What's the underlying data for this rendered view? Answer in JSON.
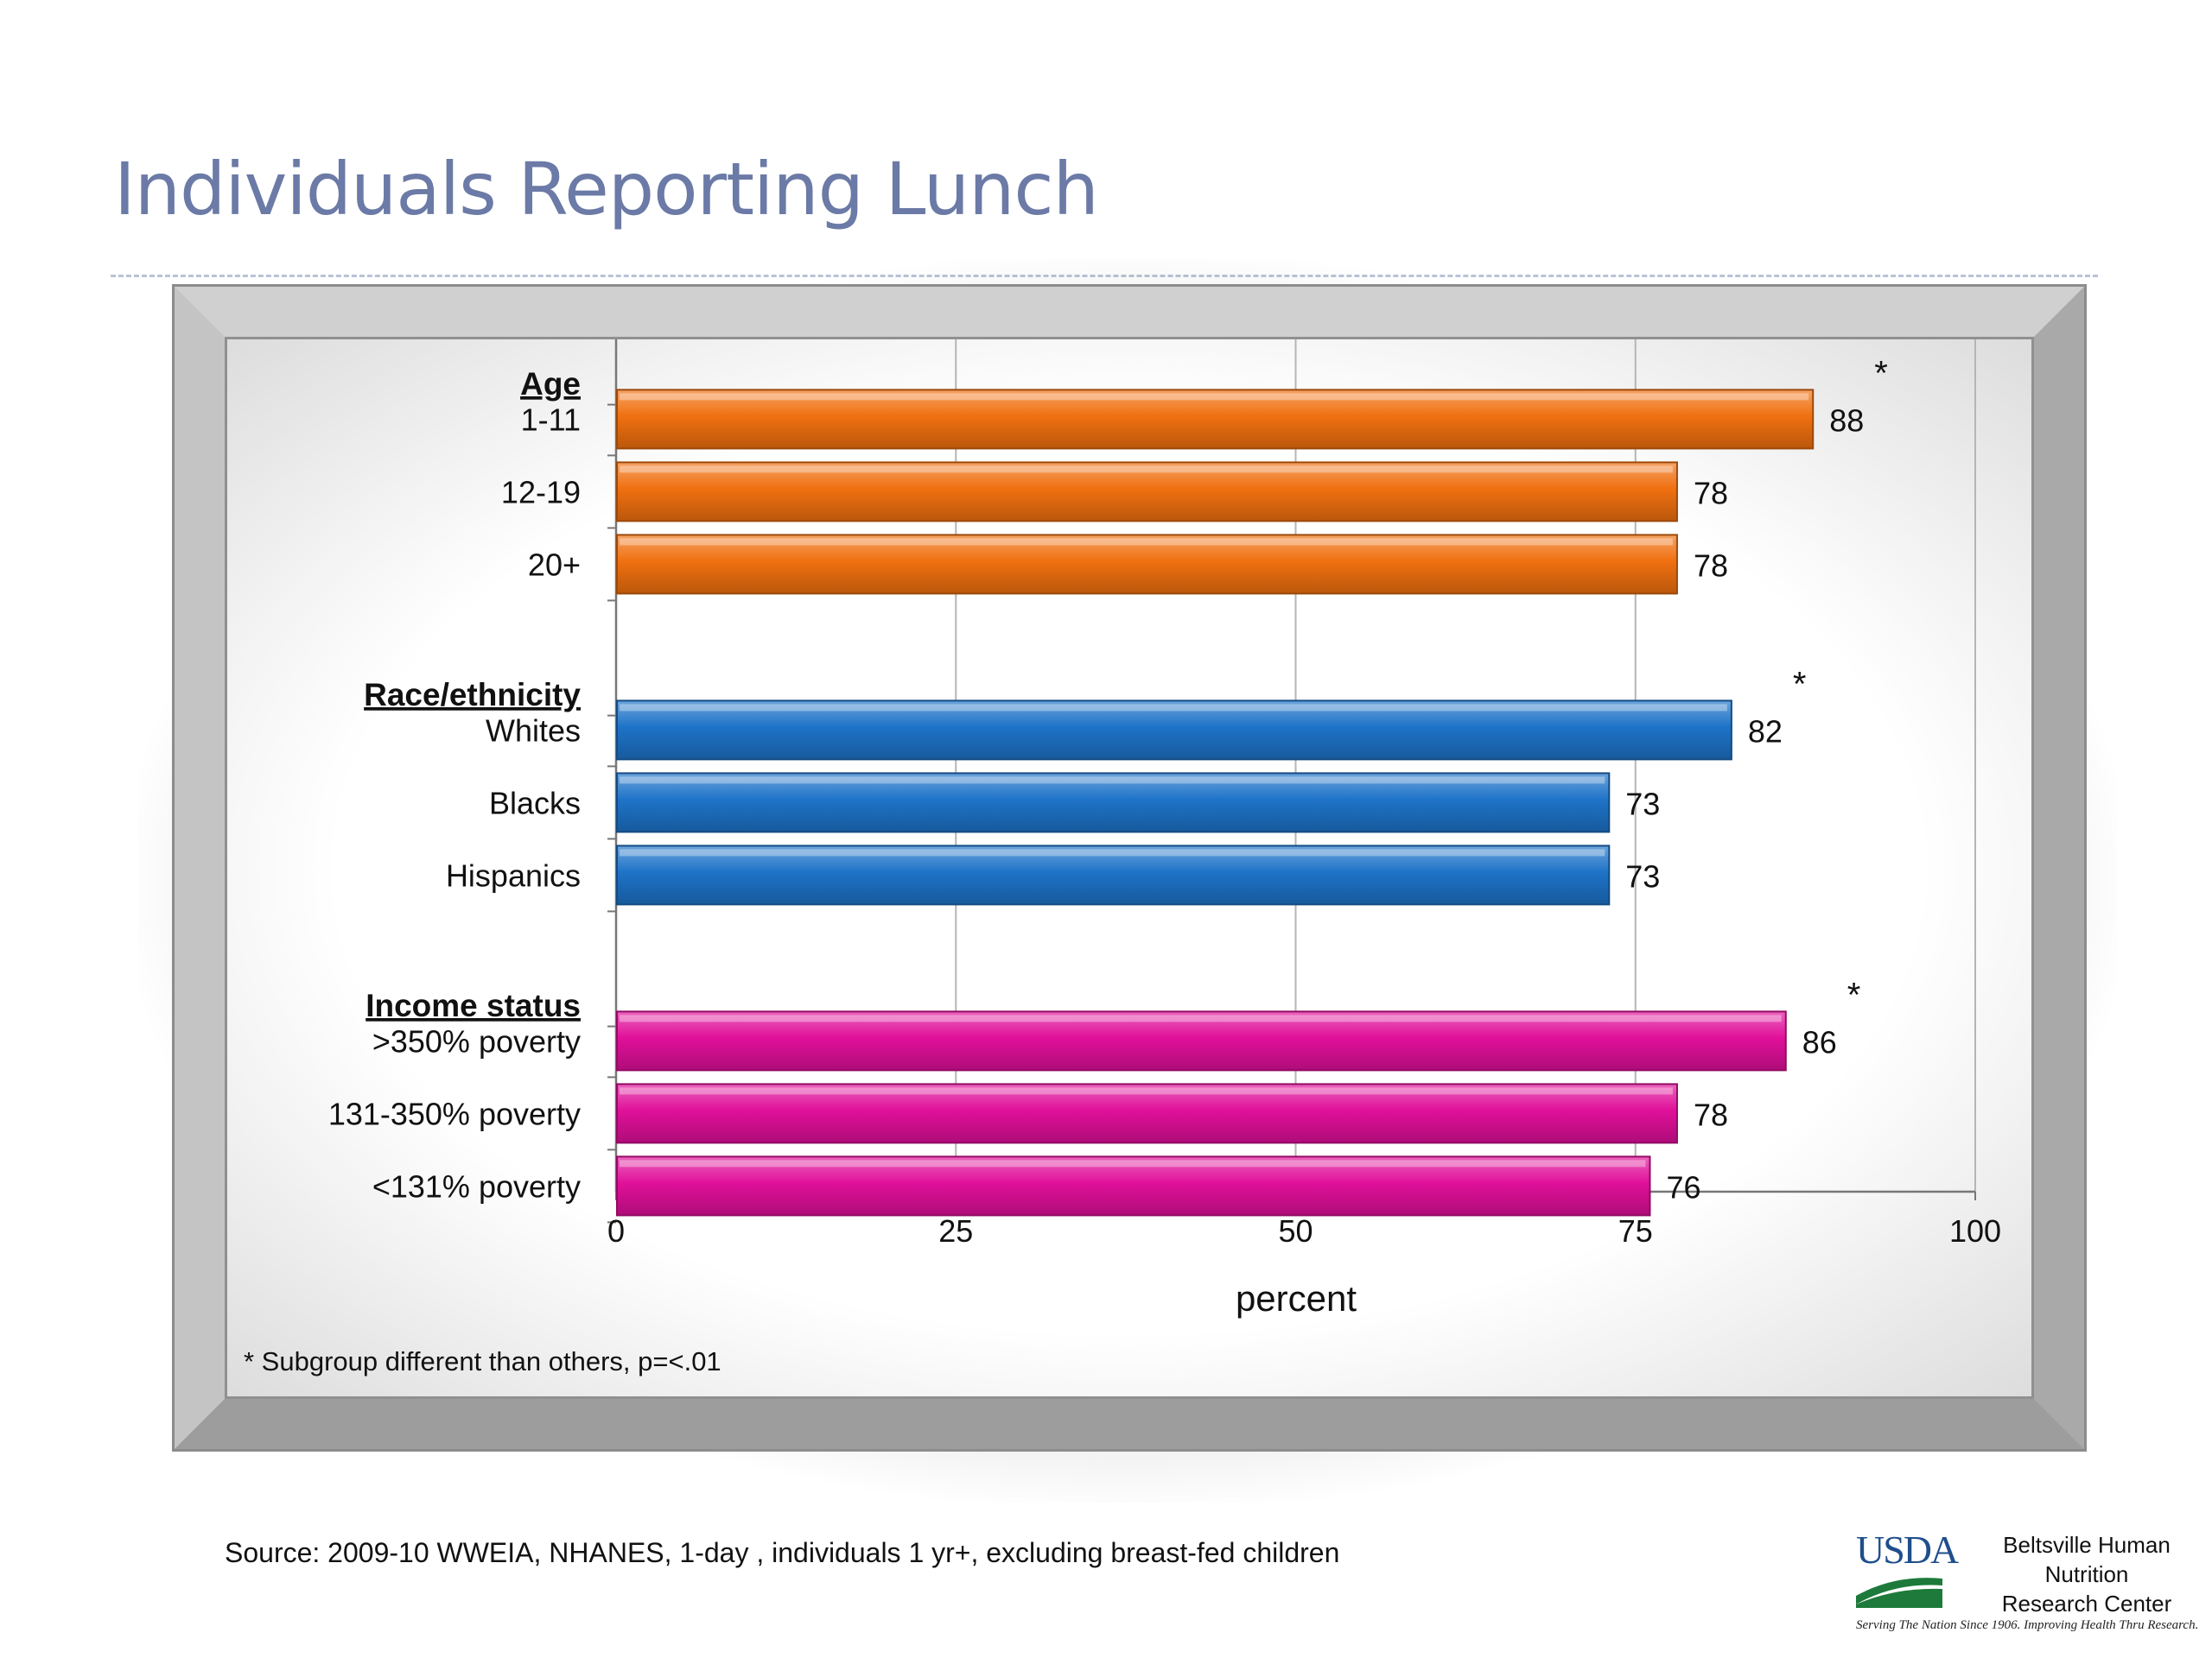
{
  "slide": {
    "title": "Individuals Reporting Lunch",
    "source": "Source:  2009-10 WWEIA, NHANES, 1-day , individuals 1 yr+, excluding breast-fed children"
  },
  "logo": {
    "usda": "USDA",
    "line1": "Beltsville Human Nutrition",
    "line2": "Research Center",
    "tagline": "Serving The Nation Since 1906. Improving Health Thru Research."
  },
  "chart_data": {
    "type": "bar",
    "orientation": "horizontal",
    "xlabel": "percent",
    "xlim": [
      0,
      100
    ],
    "xticks": [
      0,
      25,
      50,
      75,
      100
    ],
    "grid": true,
    "footnote": "* Subgroup different than others, p=<.01",
    "significance_marker": "*",
    "groups": [
      {
        "name": "Age",
        "color": "#f07010",
        "categories": [
          "1-11",
          "12-19",
          "20+"
        ],
        "values": [
          88,
          78,
          78
        ],
        "significant": [
          true,
          false,
          false
        ]
      },
      {
        "name": "Race/ethnicity",
        "color": "#1e73c8",
        "categories": [
          "Whites",
          "Blacks",
          "Hispanics"
        ],
        "values": [
          82,
          73,
          73
        ],
        "significant": [
          true,
          false,
          false
        ]
      },
      {
        "name": "Income status",
        "color": "#e0109a",
        "categories": [
          ">350% poverty",
          "131-350% poverty",
          "<131% poverty"
        ],
        "values": [
          86,
          78,
          76
        ],
        "significant": [
          true,
          false,
          false
        ]
      }
    ]
  }
}
